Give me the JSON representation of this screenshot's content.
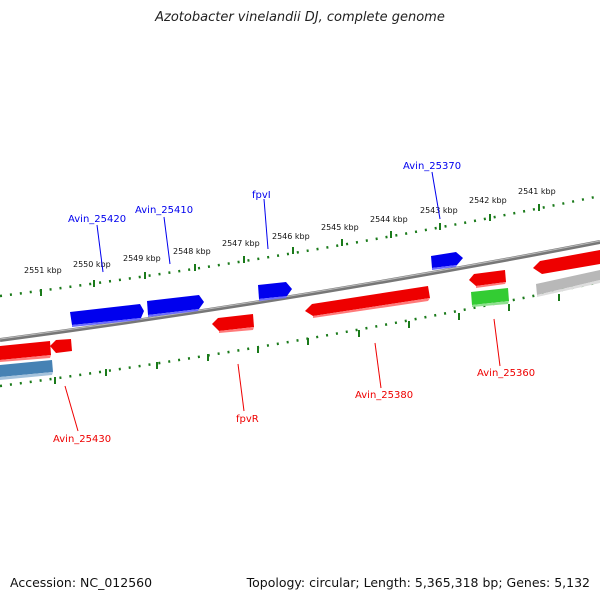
{
  "title": "Azotobacter vinelandii DJ, complete genome",
  "footer": {
    "accession": "Accession: NC_012560",
    "summary": "Topology: circular; Length: 5,365,318 bp; Genes: 5,132"
  },
  "scale_labels": [
    "2551 kbp",
    "2550 kbp",
    "2549 kbp",
    "2548 kbp",
    "2547 kbp",
    "2546 kbp",
    "2545 kbp",
    "2544 kbp",
    "2543 kbp",
    "2542 kbp",
    "2541 kbp"
  ],
  "genes_forward": [
    {
      "label": "Avin_25420",
      "color": "#0000ee"
    },
    {
      "label": "Avin_25410",
      "color": "#0000ee"
    },
    {
      "label": "fpvI",
      "color": "#0000ee"
    },
    {
      "label": "Avin_25370",
      "color": "#0000ee"
    }
  ],
  "genes_reverse": [
    {
      "label": "Avin_25430",
      "color": "#ee0000"
    },
    {
      "label": "fpvR",
      "color": "#ee0000"
    },
    {
      "label": "Avin_25380",
      "color": "#ee0000"
    },
    {
      "label": "Avin_25360",
      "color": "#ee0000"
    }
  ],
  "colors": {
    "forward_gene": "#0000ee",
    "reverse_gene": "#ee0000",
    "other_gene": "#33cc33",
    "pseudo_gene": "#4682b4",
    "scale_ticks": "#1a7a1a",
    "backbone": "#808080"
  }
}
